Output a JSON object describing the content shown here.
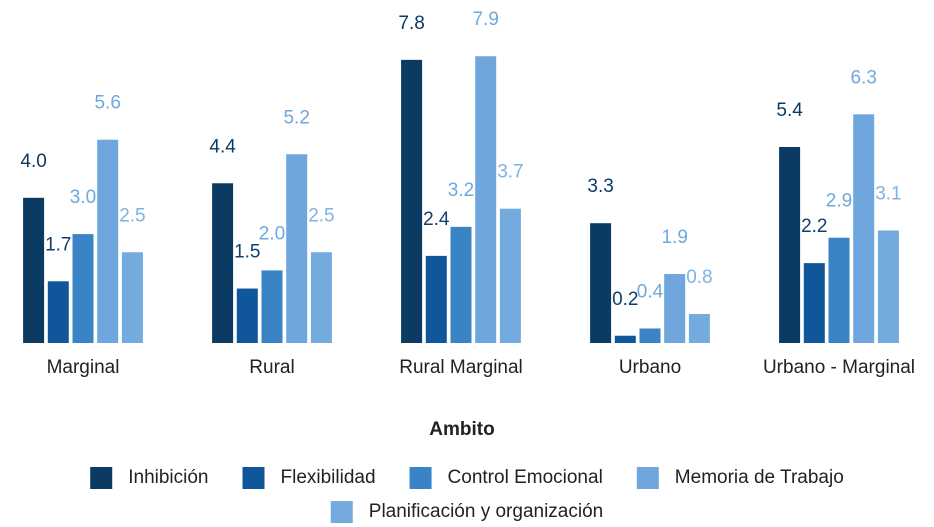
{
  "chart_data": {
    "type": "bar",
    "x_label": "Ambito",
    "categories": [
      "Marginal",
      "Rural",
      "Rural Marginal",
      "Urbano",
      "Urbano - Marginal"
    ],
    "series": [
      {
        "name": "Inhibición",
        "color": "#0b3a63",
        "label_color": "#0b3a63",
        "values": [
          4.0,
          4.4,
          7.8,
          3.3,
          5.4
        ],
        "value_labels": [
          "4.0",
          "4.4",
          "7.8",
          "3.3",
          "5.4"
        ]
      },
      {
        "name": "Flexibilidad",
        "color": "#10569a",
        "label_color": "#103f6b",
        "values": [
          1.7,
          1.5,
          2.4,
          0.2,
          2.2
        ],
        "value_labels": [
          "1.7",
          "1.5",
          "2.4",
          "0.2",
          "2.2"
        ]
      },
      {
        "name": "Control Emocional",
        "color": "#3a84c6",
        "label_color": "#6fa8dc",
        "values": [
          3.0,
          2.0,
          3.2,
          0.4,
          2.9
        ],
        "value_labels": [
          "3.0",
          "2.0",
          "3.2",
          "0.4",
          "2.9"
        ]
      },
      {
        "name": "Memoria de Trabajo",
        "color": "#6ea6dd",
        "label_color": "#6fa8dc",
        "values": [
          5.6,
          5.2,
          7.9,
          1.9,
          6.3
        ],
        "value_labels": [
          "5.6",
          "5.2",
          "7.9",
          "1.9",
          "6.3"
        ]
      },
      {
        "name": "Planificación y organización",
        "color": "#74abdf",
        "label_color": "#7fb2e0",
        "values": [
          2.5,
          2.5,
          3.7,
          0.8,
          3.1
        ],
        "value_labels": [
          "2.5",
          "2.5",
          "3.7",
          "0.8",
          "3.1"
        ]
      }
    ]
  }
}
